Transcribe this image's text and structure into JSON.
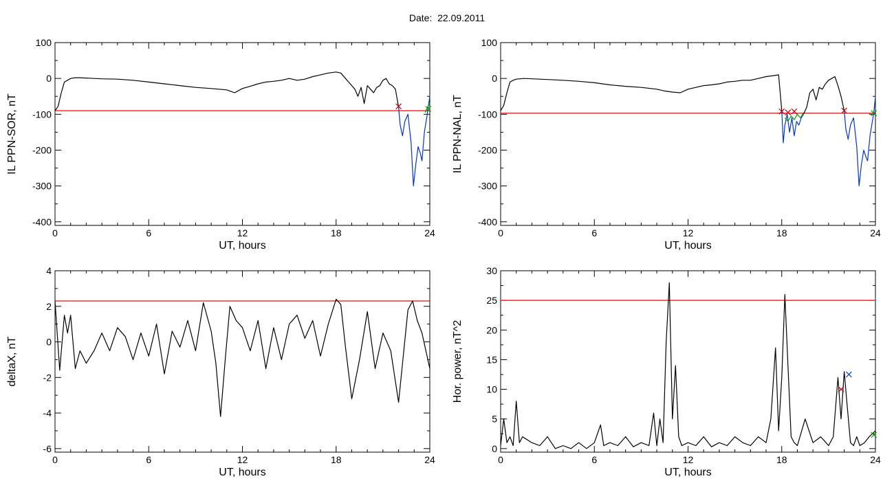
{
  "header": {
    "title": "Date:  22.09.2011"
  },
  "colors": {
    "axis": "#000000",
    "trace": "#000000",
    "threshold": "#ff0000",
    "crossing_blue": "#0033cc",
    "crossing_green": "#00a000",
    "marker_red": "#cc0000",
    "marker_blue": "#0044cc"
  },
  "chart_data": [
    {
      "id": "il-sor",
      "type": "line",
      "xlabel": "UT, hours",
      "ylabel": "IL PPN-SOR, nT",
      "xlim": [
        0,
        24
      ],
      "ylim": [
        -410,
        100
      ],
      "xticks": [
        0,
        6,
        12,
        18,
        24
      ],
      "yticks": [
        100,
        0,
        -100,
        -200,
        -300,
        -400
      ],
      "threshold": -90,
      "series": [
        {
          "color": "#000000",
          "x": [
            0,
            0.2,
            0.4,
            0.6,
            0.8,
            1.0,
            1.3,
            1.6,
            2,
            3,
            4,
            5,
            6,
            7,
            8,
            9,
            10,
            10.5,
            11,
            11.5,
            12,
            12.5,
            13,
            13.5,
            14,
            14.5,
            15,
            15.5,
            16,
            16.5,
            17,
            17.5,
            18,
            18.3,
            18.6,
            19,
            19.2,
            19.4,
            19.6,
            19.8,
            20,
            20.2,
            20.4,
            20.6,
            20.8,
            21,
            21.2,
            21.4,
            21.6,
            21.8,
            22
          ],
          "y": [
            -90,
            -78,
            -40,
            -10,
            -5,
            0,
            2,
            2,
            1,
            -1,
            -2,
            -5,
            -10,
            -15,
            -20,
            -25,
            -28,
            -30,
            -32,
            -40,
            -28,
            -22,
            -15,
            -10,
            -8,
            -5,
            0,
            -5,
            -2,
            5,
            10,
            15,
            18,
            15,
            0,
            -20,
            -30,
            -50,
            -25,
            -70,
            -20,
            -30,
            -40,
            -25,
            -20,
            -5,
            0,
            -15,
            -20,
            -30,
            -80
          ]
        },
        {
          "color": "#0033cc",
          "x": [
            22,
            22.1,
            22.25,
            22.4,
            22.6,
            22.8,
            22.95,
            23.1,
            23.25,
            23.4,
            23.5,
            23.65,
            23.8,
            23.9,
            24
          ],
          "y": [
            -80,
            -130,
            -160,
            -120,
            -100,
            -180,
            -300,
            -240,
            -190,
            -210,
            -230,
            -150,
            -110,
            -80,
            -50
          ]
        },
        {
          "color": "#00a000",
          "x": [
            23.7,
            23.85,
            24
          ],
          "y": [
            -95,
            -80,
            -70
          ]
        }
      ],
      "markers": [
        {
          "x": 22.0,
          "y": -78,
          "color": "#cc0000"
        },
        {
          "x": 23.9,
          "y": -85,
          "color": "#00a000"
        }
      ]
    },
    {
      "id": "il-nal",
      "type": "line",
      "xlabel": "UT, hours",
      "ylabel": "IL PPN-NAL, nT",
      "xlim": [
        0,
        24
      ],
      "ylim": [
        -410,
        100
      ],
      "xticks": [
        0,
        6,
        12,
        18,
        24
      ],
      "yticks": [
        100,
        0,
        -100,
        -200,
        -300,
        -400
      ],
      "threshold": -97,
      "series": [
        {
          "color": "#000000",
          "x": [
            0,
            0.2,
            0.4,
            0.6,
            0.8,
            1.0,
            1.5,
            2,
            3,
            4,
            5,
            6,
            7,
            8,
            9,
            10,
            10.5,
            11,
            11.5,
            12,
            12.5,
            13,
            13.5,
            14,
            14.5,
            15,
            15.5,
            16,
            16.5,
            17,
            17.5,
            17.8,
            18
          ],
          "y": [
            -90,
            -75,
            -40,
            -10,
            -5,
            -2,
            0,
            -1,
            -3,
            -5,
            -8,
            -12,
            -18,
            -22,
            -25,
            -30,
            -35,
            -38,
            -40,
            -30,
            -25,
            -20,
            -18,
            -15,
            -10,
            -8,
            -5,
            -5,
            0,
            5,
            8,
            10,
            -90
          ]
        },
        {
          "color": "#0033cc",
          "x": [
            18,
            18.1,
            18.2,
            18.35,
            18.5,
            18.65,
            18.8,
            18.95,
            19.1,
            19.25,
            19.4
          ],
          "y": [
            -90,
            -180,
            -130,
            -100,
            -150,
            -110,
            -160,
            -120,
            -130,
            -110,
            -100
          ]
        },
        {
          "color": "#00a000",
          "x": [
            18.2,
            18.4,
            18.6,
            18.8,
            19,
            19.2,
            19.4
          ],
          "y": [
            -110,
            -120,
            -105,
            -115,
            -100,
            -110,
            -95
          ]
        },
        {
          "color": "#000000",
          "x": [
            19.4,
            19.6,
            19.8,
            20,
            20.2,
            20.4,
            20.6,
            20.8,
            21,
            21.2,
            21.4,
            21.6,
            21.8,
            22
          ],
          "y": [
            -100,
            -80,
            -40,
            -30,
            -60,
            -25,
            -30,
            -15,
            -5,
            0,
            5,
            -20,
            -50,
            -90
          ]
        },
        {
          "color": "#0033cc",
          "x": [
            22,
            22.1,
            22.25,
            22.4,
            22.6,
            22.8,
            22.95,
            23.1,
            23.25,
            23.4,
            23.5,
            23.65,
            23.8,
            23.9,
            24
          ],
          "y": [
            -90,
            -140,
            -170,
            -130,
            -110,
            -190,
            -300,
            -240,
            -200,
            -220,
            -230,
            -160,
            -120,
            -95,
            -50
          ]
        }
      ],
      "markers": [
        {
          "x": 18.0,
          "y": -92,
          "color": "#cc0000"
        },
        {
          "x": 18.4,
          "y": -95,
          "color": "#cc0000"
        },
        {
          "x": 18.8,
          "y": -92,
          "color": "#cc0000"
        },
        {
          "x": 22.0,
          "y": -90,
          "color": "#cc0000"
        },
        {
          "x": 23.9,
          "y": -97,
          "color": "#00a000"
        }
      ]
    },
    {
      "id": "deltax",
      "type": "line",
      "xlabel": "UT, hours",
      "ylabel": "deltaX, nT",
      "xlim": [
        0,
        24
      ],
      "ylim": [
        -6.2,
        4
      ],
      "xticks": [
        0,
        6,
        12,
        18,
        24
      ],
      "yticks": [
        4,
        2,
        0,
        -2,
        -4,
        -6
      ],
      "threshold": 2.3,
      "series": [
        {
          "color": "#000000",
          "x": [
            0,
            0.3,
            0.6,
            0.8,
            1,
            1.3,
            1.6,
            2,
            2.5,
            3,
            3.5,
            4,
            4.5,
            5,
            5.5,
            6,
            6.5,
            7,
            7.5,
            8,
            8.5,
            9,
            9.5,
            10,
            10.3,
            10.6,
            10.9,
            11.2,
            11.6,
            12,
            12.5,
            13,
            13.5,
            14,
            14.5,
            15,
            15.5,
            16,
            16.5,
            17,
            17.5,
            18,
            18.3,
            18.6,
            19,
            19.5,
            20,
            20.5,
            21,
            21.5,
            22,
            22.3,
            22.6,
            22.9,
            23.2,
            23.5,
            24
          ],
          "y": [
            2.3,
            -1.6,
            1.5,
            0.5,
            1.5,
            -1.5,
            -0.5,
            -1.2,
            -0.5,
            0.5,
            -0.5,
            0.8,
            0.3,
            -1,
            0.5,
            -0.8,
            1,
            -1.8,
            0.6,
            -0.3,
            1.2,
            -0.5,
            2.2,
            0.6,
            -1.2,
            -4.2,
            -1,
            2,
            1.2,
            0.8,
            -0.5,
            1.2,
            -1.5,
            0.8,
            -1,
            1,
            1.5,
            0.2,
            1.2,
            -0.8,
            1,
            2.4,
            2.1,
            -0.3,
            -3.2,
            -1,
            1.7,
            -1.5,
            0.5,
            -0.5,
            -3.4,
            -0.8,
            1.8,
            2.3,
            1.2,
            0.5,
            -1.5
          ]
        }
      ],
      "markers": []
    },
    {
      "id": "hor-power",
      "type": "line",
      "xlabel": "UT, hours",
      "ylabel": "Hor. power, nT^2",
      "xlim": [
        0,
        24
      ],
      "ylim": [
        -0.6,
        30
      ],
      "xticks": [
        0,
        6,
        12,
        18,
        24
      ],
      "yticks": [
        30,
        25,
        20,
        15,
        10,
        5,
        0
      ],
      "threshold": 25,
      "series": [
        {
          "color": "#000000",
          "x": [
            0,
            0.2,
            0.4,
            0.6,
            0.8,
            1,
            1.2,
            1.4,
            2,
            2.5,
            3,
            3.5,
            4,
            4.5,
            5,
            5.5,
            6,
            6.4,
            6.6,
            7,
            7.5,
            8,
            8.5,
            9,
            9.5,
            9.8,
            10,
            10.2,
            10.4,
            10.6,
            10.8,
            11,
            11.2,
            11.4,
            11.6,
            12,
            12.5,
            13,
            13.5,
            14,
            14.5,
            15,
            15.5,
            16,
            16.5,
            17,
            17.3,
            17.6,
            17.8,
            18,
            18.2,
            18.4,
            18.6,
            18.8,
            19,
            19.5,
            20,
            20.5,
            21,
            21.3,
            21.6,
            21.8,
            22,
            22.2,
            22.4,
            22.6,
            22.8,
            23,
            23.3,
            23.6,
            24
          ],
          "y": [
            0.5,
            5,
            1,
            2,
            0.5,
            8,
            1,
            2,
            1,
            0.5,
            2,
            0,
            0.5,
            0,
            1,
            0,
            1,
            4,
            0.5,
            1,
            0.5,
            2,
            0.3,
            1,
            0.5,
            6,
            0.5,
            5,
            1,
            18,
            28,
            5,
            14,
            2,
            0.5,
            1,
            0.5,
            2,
            0.3,
            1,
            0.5,
            2,
            1,
            0.5,
            2,
            1,
            5,
            17,
            3,
            12,
            26,
            14,
            2,
            1,
            0.5,
            5,
            1,
            2,
            0.5,
            2,
            12,
            5,
            13,
            7,
            1,
            0.5,
            2,
            0.5,
            1,
            2,
            3
          ]
        }
      ],
      "markers": [
        {
          "x": 21.8,
          "y": 10,
          "color": "#cc0000"
        },
        {
          "x": 22.3,
          "y": 12.5,
          "color": "#0044cc"
        },
        {
          "x": 23.9,
          "y": 2.3,
          "color": "#00a000"
        }
      ]
    }
  ]
}
